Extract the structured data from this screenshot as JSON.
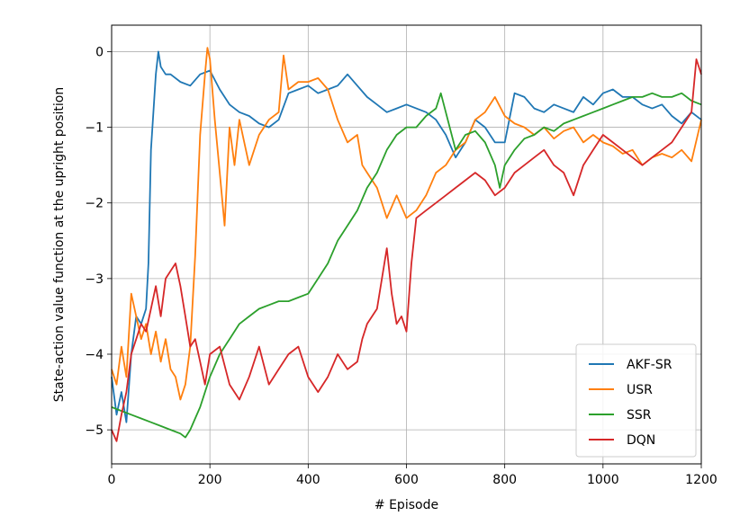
{
  "chart_data": {
    "type": "line",
    "title": "",
    "xlabel": "# Episode",
    "ylabel": "State-action value function at the upright position",
    "xlim": [
      0,
      1200
    ],
    "ylim": [
      -5.45,
      0.35
    ],
    "xticks": [
      0,
      200,
      400,
      600,
      800,
      1000,
      1200
    ],
    "xtick_labels": [
      "0",
      "200",
      "400",
      "600",
      "800",
      "1000",
      "1200"
    ],
    "yticks": [
      0,
      -1,
      -2,
      -3,
      -4,
      -5
    ],
    "ytick_labels": [
      "0",
      "−1",
      "−2",
      "−3",
      "−4",
      "−5"
    ],
    "grid": true,
    "legend_position": "lower-right",
    "series": [
      {
        "name": "AKF-SR",
        "color": "#1f77b4",
        "x": [
          0,
          10,
          20,
          30,
          40,
          50,
          60,
          70,
          75,
          80,
          90,
          95,
          100,
          110,
          120,
          140,
          160,
          180,
          200,
          220,
          240,
          260,
          280,
          300,
          320,
          340,
          360,
          380,
          400,
          420,
          440,
          460,
          480,
          500,
          520,
          540,
          560,
          580,
          600,
          620,
          640,
          660,
          680,
          700,
          720,
          740,
          760,
          780,
          800,
          820,
          840,
          860,
          880,
          900,
          920,
          940,
          960,
          980,
          1000,
          1020,
          1040,
          1060,
          1080,
          1100,
          1120,
          1140,
          1160,
          1180,
          1200
        ],
        "y": [
          -4.3,
          -4.8,
          -4.5,
          -4.9,
          -4.0,
          -3.5,
          -3.6,
          -3.4,
          -2.8,
          -1.3,
          -0.3,
          0.0,
          -0.2,
          -0.3,
          -0.3,
          -0.4,
          -0.45,
          -0.3,
          -0.25,
          -0.5,
          -0.7,
          -0.8,
          -0.85,
          -0.95,
          -1.0,
          -0.9,
          -0.55,
          -0.5,
          -0.45,
          -0.55,
          -0.5,
          -0.45,
          -0.3,
          -0.45,
          -0.6,
          -0.7,
          -0.8,
          -0.75,
          -0.7,
          -0.75,
          -0.8,
          -0.9,
          -1.1,
          -1.4,
          -1.2,
          -0.9,
          -1.0,
          -1.2,
          -1.2,
          -0.55,
          -0.6,
          -0.75,
          -0.8,
          -0.7,
          -0.75,
          -0.8,
          -0.6,
          -0.7,
          -0.55,
          -0.5,
          -0.6,
          -0.6,
          -0.7,
          -0.75,
          -0.7,
          -0.85,
          -0.95,
          -0.8,
          -0.9
        ]
      },
      {
        "name": "USR",
        "color": "#ff7f0e",
        "x": [
          0,
          10,
          20,
          30,
          40,
          50,
          60,
          70,
          80,
          90,
          100,
          110,
          120,
          130,
          140,
          150,
          160,
          170,
          180,
          190,
          195,
          200,
          210,
          220,
          230,
          240,
          250,
          260,
          280,
          300,
          320,
          340,
          350,
          360,
          380,
          400,
          420,
          440,
          460,
          480,
          500,
          510,
          520,
          540,
          560,
          580,
          600,
          620,
          640,
          660,
          680,
          700,
          720,
          740,
          760,
          780,
          800,
          820,
          840,
          860,
          880,
          900,
          920,
          940,
          960,
          980,
          1000,
          1020,
          1040,
          1060,
          1080,
          1100,
          1120,
          1140,
          1160,
          1180,
          1200
        ],
        "y": [
          -4.2,
          -4.4,
          -3.9,
          -4.3,
          -3.2,
          -3.5,
          -3.8,
          -3.6,
          -4.0,
          -3.7,
          -4.1,
          -3.8,
          -4.2,
          -4.3,
          -4.6,
          -4.4,
          -3.9,
          -2.7,
          -1.1,
          -0.3,
          0.05,
          -0.1,
          -0.9,
          -1.6,
          -2.3,
          -1.0,
          -1.5,
          -0.9,
          -1.5,
          -1.1,
          -0.9,
          -0.8,
          -0.05,
          -0.5,
          -0.4,
          -0.4,
          -0.35,
          -0.5,
          -0.9,
          -1.2,
          -1.1,
          -1.5,
          -1.6,
          -1.8,
          -2.2,
          -1.9,
          -2.2,
          -2.1,
          -1.9,
          -1.6,
          -1.5,
          -1.3,
          -1.2,
          -0.9,
          -0.8,
          -0.6,
          -0.85,
          -0.95,
          -1.0,
          -1.1,
          -1.0,
          -1.15,
          -1.05,
          -1.0,
          -1.2,
          -1.1,
          -1.2,
          -1.25,
          -1.35,
          -1.3,
          -1.5,
          -1.4,
          -1.35,
          -1.4,
          -1.3,
          -1.45,
          -0.9
        ]
      },
      {
        "name": "SSR",
        "color": "#2ca02c",
        "x": [
          0,
          20,
          40,
          60,
          80,
          100,
          120,
          140,
          150,
          160,
          180,
          200,
          220,
          240,
          260,
          280,
          300,
          320,
          340,
          360,
          380,
          400,
          420,
          440,
          460,
          480,
          500,
          520,
          540,
          560,
          580,
          600,
          620,
          640,
          660,
          670,
          680,
          700,
          720,
          740,
          760,
          780,
          790,
          800,
          820,
          840,
          860,
          880,
          900,
          920,
          940,
          960,
          980,
          1000,
          1020,
          1040,
          1060,
          1080,
          1100,
          1120,
          1140,
          1160,
          1180,
          1200
        ],
        "y": [
          -4.7,
          -4.75,
          -4.8,
          -4.85,
          -4.9,
          -4.95,
          -5.0,
          -5.05,
          -5.1,
          -5.0,
          -4.7,
          -4.3,
          -4.0,
          -3.8,
          -3.6,
          -3.5,
          -3.4,
          -3.35,
          -3.3,
          -3.3,
          -3.25,
          -3.2,
          -3.0,
          -2.8,
          -2.5,
          -2.3,
          -2.1,
          -1.8,
          -1.6,
          -1.3,
          -1.1,
          -1.0,
          -1.0,
          -0.85,
          -0.75,
          -0.55,
          -0.8,
          -1.3,
          -1.1,
          -1.05,
          -1.2,
          -1.5,
          -1.8,
          -1.5,
          -1.3,
          -1.15,
          -1.1,
          -1.0,
          -1.05,
          -0.95,
          -0.9,
          -0.85,
          -0.8,
          -0.75,
          -0.7,
          -0.65,
          -0.6,
          -0.6,
          -0.55,
          -0.6,
          -0.6,
          -0.55,
          -0.65,
          -0.7
        ]
      },
      {
        "name": "DQN",
        "color": "#d62728",
        "x": [
          0,
          10,
          20,
          30,
          40,
          50,
          60,
          70,
          80,
          90,
          100,
          110,
          120,
          130,
          140,
          150,
          160,
          170,
          180,
          190,
          200,
          220,
          240,
          260,
          280,
          300,
          320,
          340,
          360,
          380,
          400,
          420,
          440,
          460,
          480,
          500,
          510,
          520,
          540,
          560,
          570,
          580,
          590,
          600,
          610,
          620,
          640,
          660,
          680,
          700,
          720,
          740,
          760,
          780,
          800,
          820,
          840,
          860,
          880,
          900,
          920,
          940,
          960,
          980,
          1000,
          1020,
          1040,
          1060,
          1080,
          1100,
          1120,
          1140,
          1160,
          1180,
          1190,
          1200
        ],
        "y": [
          -5.0,
          -5.15,
          -4.8,
          -4.5,
          -4.0,
          -3.8,
          -3.6,
          -3.7,
          -3.4,
          -3.1,
          -3.5,
          -3.0,
          -2.9,
          -2.8,
          -3.1,
          -3.5,
          -3.9,
          -3.8,
          -4.1,
          -4.4,
          -4.0,
          -3.9,
          -4.4,
          -4.6,
          -4.3,
          -3.9,
          -4.4,
          -4.2,
          -4.0,
          -3.9,
          -4.3,
          -4.5,
          -4.3,
          -4.0,
          -4.2,
          -4.1,
          -3.8,
          -3.6,
          -3.4,
          -2.6,
          -3.2,
          -3.6,
          -3.5,
          -3.7,
          -2.8,
          -2.2,
          -2.1,
          -2.0,
          -1.9,
          -1.8,
          -1.7,
          -1.6,
          -1.7,
          -1.9,
          -1.8,
          -1.6,
          -1.5,
          -1.4,
          -1.3,
          -1.5,
          -1.6,
          -1.9,
          -1.5,
          -1.3,
          -1.1,
          -1.2,
          -1.3,
          -1.4,
          -1.5,
          -1.4,
          -1.3,
          -1.2,
          -1.0,
          -0.8,
          -0.1,
          -0.3
        ]
      }
    ]
  }
}
